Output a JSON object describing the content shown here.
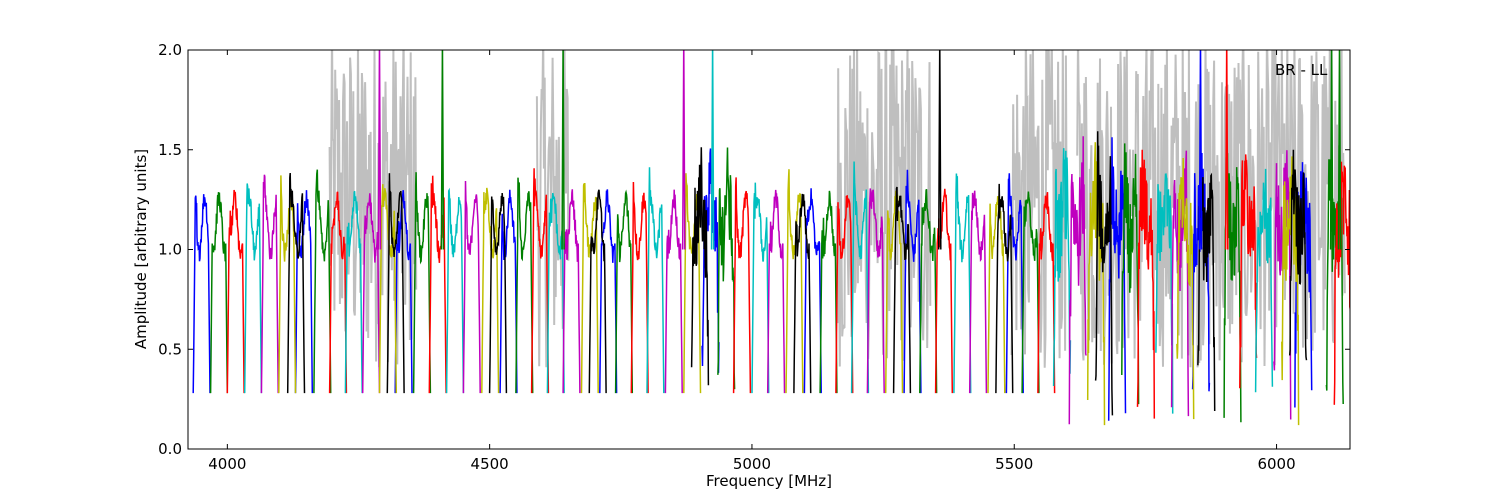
{
  "chart_data": {
    "type": "line",
    "title": "",
    "annotation": "BR - LL",
    "xlabel": "Frequency [MHz]",
    "ylabel": "Amplitude [arbitrary units]",
    "xlim": [
      3925,
      6140
    ],
    "ylim": [
      0.0,
      2.0
    ],
    "xticks": [
      4000,
      4500,
      5000,
      5500,
      6000
    ],
    "xtick_labels": [
      "4000",
      "4500",
      "5000",
      "5500",
      "6000"
    ],
    "yticks": [
      0.0,
      0.5,
      1.0,
      1.5,
      2.0
    ],
    "ytick_labels": [
      "0.0",
      "0.5",
      "1.0",
      "1.5",
      "2.0"
    ],
    "grid": false,
    "band_width_mhz": 32,
    "series": [
      {
        "color": "#0000ff",
        "bands": [
          3935,
          4130,
          4320,
          4520,
          4710,
          4905,
          5100,
          5290,
          5485,
          5680,
          5840,
          6035
        ]
      },
      {
        "color": "#008000",
        "bands": [
          3968,
          4165,
          4355,
          4550,
          4740,
          4935,
          5130,
          5320,
          5515,
          5705,
          5900,
          6095
        ]
      },
      {
        "color": "#ff0000",
        "bands": [
          4000,
          4195,
          4385,
          4580,
          4770,
          4965,
          5160,
          5350,
          5545,
          5735,
          5930,
          6110
        ]
      },
      {
        "color": "#00bfbf",
        "bands": [
          4033,
          4225,
          4418,
          4610,
          4800,
          5000,
          5190,
          5385,
          5575,
          5770,
          5960
        ]
      },
      {
        "color": "#bf00bf",
        "bands": [
          4065,
          4258,
          4450,
          4640,
          4835,
          5030,
          5220,
          5415,
          5605,
          5800,
          5995
        ]
      },
      {
        "color": "#bfbf00",
        "bands": [
          4098,
          4290,
          4485,
          4675,
          4870,
          5065,
          5255,
          5450,
          5640,
          5810,
          6010
        ]
      },
      {
        "color": "#000000",
        "bands": [
          4115,
          4305,
          4500,
          4690,
          4885,
          5080,
          5270,
          5465,
          5655,
          5850,
          6025
        ]
      }
    ],
    "flagged_series": {
      "color": "#bfbfbf",
      "name": ""
    }
  }
}
